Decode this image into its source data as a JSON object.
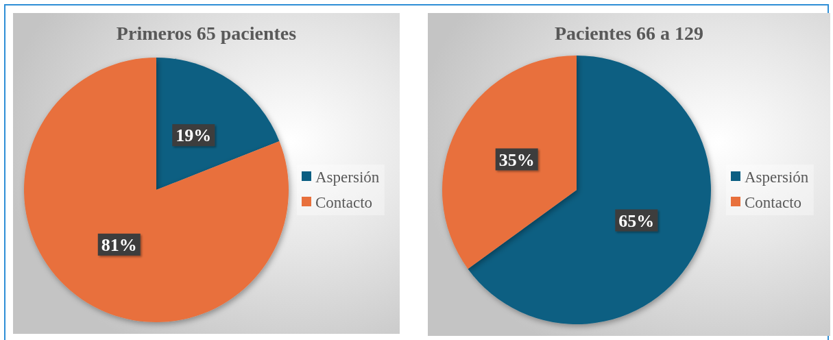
{
  "chart_data": [
    {
      "type": "pie",
      "title": "Primeros 65 pacientes",
      "categories": [
        "Aspersión",
        "Contacto"
      ],
      "values": [
        19,
        81
      ],
      "colors": [
        "#0b5e82",
        "#e8703c"
      ],
      "value_labels": [
        "19%",
        "81%"
      ],
      "legend": "right"
    },
    {
      "type": "pie",
      "title": "Pacientes 66 a 129",
      "categories": [
        "Aspersión",
        "Contacto"
      ],
      "values": [
        65,
        35
      ],
      "colors": [
        "#0b5e82",
        "#e8703c"
      ],
      "value_labels": [
        "65%",
        "35%"
      ],
      "legend": "right"
    }
  ]
}
